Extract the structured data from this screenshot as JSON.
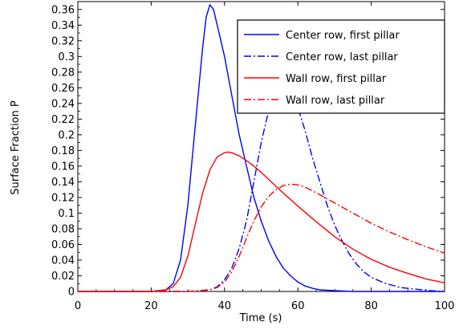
{
  "chart_data": {
    "type": "line",
    "xlabel": "Time (s)",
    "ylabel": "Surface Fraction  P",
    "xlim": [
      0,
      100
    ],
    "ylim": [
      0,
      0.37
    ],
    "x_ticks": [
      "0",
      "20",
      "40",
      "60",
      "80",
      "100"
    ],
    "y_ticks": [
      "0",
      "0.02",
      "0.04",
      "0.06",
      "0.08",
      "0.1",
      "0.12",
      "0.14",
      "0.16",
      "0.18",
      "0.2",
      "0.22",
      "0.24",
      "0.26",
      "0.28",
      "0.3",
      "0.32",
      "0.34",
      "0.36"
    ],
    "grid": false,
    "legend_position": "top-right",
    "series": [
      {
        "name": "Center row, first pillar",
        "color": "#0000ff",
        "dash": "solid",
        "x": [
          0,
          20,
          24,
          26,
          28,
          30,
          32,
          34,
          35,
          36,
          37,
          38,
          40,
          42,
          44,
          46,
          48,
          50,
          52,
          54,
          56,
          58,
          60,
          62,
          64,
          66,
          70,
          75,
          80,
          90,
          100
        ],
        "y": [
          0,
          0,
          0.002,
          0.01,
          0.04,
          0.11,
          0.21,
          0.31,
          0.35,
          0.366,
          0.36,
          0.34,
          0.3,
          0.25,
          0.2,
          0.16,
          0.12,
          0.09,
          0.065,
          0.045,
          0.03,
          0.02,
          0.012,
          0.007,
          0.004,
          0.002,
          0.001,
          0,
          0,
          0,
          0
        ]
      },
      {
        "name": "Center row, last pillar",
        "color": "#0000ff",
        "dash": "dashdot",
        "x": [
          0,
          30,
          36,
          38,
          40,
          42,
          44,
          46,
          48,
          50,
          52,
          54,
          56,
          57,
          58,
          60,
          62,
          64,
          66,
          68,
          70,
          72,
          74,
          76,
          78,
          80,
          84,
          88,
          92,
          96,
          100
        ],
        "y": [
          0,
          0,
          0.002,
          0.006,
          0.015,
          0.03,
          0.055,
          0.09,
          0.14,
          0.19,
          0.23,
          0.255,
          0.26,
          0.258,
          0.255,
          0.235,
          0.205,
          0.17,
          0.14,
          0.11,
          0.085,
          0.065,
          0.048,
          0.035,
          0.025,
          0.018,
          0.01,
          0.005,
          0.003,
          0.001,
          0
        ]
      },
      {
        "name": "Wall row, first pillar",
        "color": "#ff0000",
        "dash": "solid",
        "x": [
          0,
          20,
          24,
          26,
          28,
          30,
          32,
          34,
          36,
          38,
          40,
          41,
          42,
          44,
          46,
          48,
          50,
          55,
          60,
          65,
          70,
          75,
          80,
          85,
          90,
          95,
          100
        ],
        "y": [
          0,
          0,
          0.002,
          0.006,
          0.018,
          0.045,
          0.085,
          0.125,
          0.155,
          0.172,
          0.177,
          0.178,
          0.177,
          0.173,
          0.167,
          0.16,
          0.152,
          0.13,
          0.109,
          0.089,
          0.07,
          0.054,
          0.041,
          0.031,
          0.023,
          0.016,
          0.011
        ]
      },
      {
        "name": "Wall row, last pillar",
        "color": "#ff0000",
        "dash": "dashdot",
        "x": [
          0,
          30,
          36,
          38,
          40,
          42,
          44,
          46,
          48,
          50,
          52,
          54,
          56,
          58,
          60,
          62,
          65,
          70,
          75,
          80,
          85,
          90,
          95,
          100
        ],
        "y": [
          0,
          0,
          0.002,
          0.005,
          0.012,
          0.025,
          0.045,
          0.068,
          0.09,
          0.108,
          0.121,
          0.13,
          0.135,
          0.137,
          0.136,
          0.133,
          0.126,
          0.113,
          0.1,
          0.087,
          0.076,
          0.066,
          0.057,
          0.049
        ]
      }
    ]
  }
}
